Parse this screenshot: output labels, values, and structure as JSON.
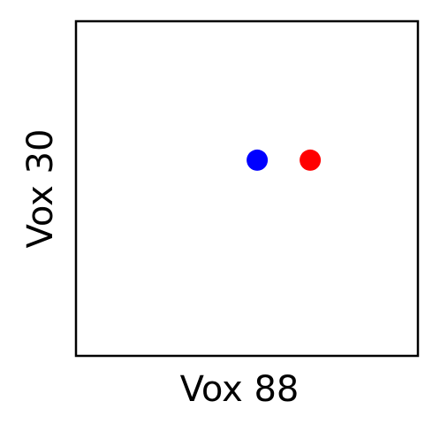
{
  "chart_data": {
    "type": "scatter",
    "title": "",
    "xlabel": "Vox 88",
    "ylabel": "Vox 30",
    "xlim": [
      0,
      1
    ],
    "ylim": [
      0,
      1
    ],
    "grid": false,
    "ticks": false,
    "points": [
      {
        "x": 0.53,
        "y": 0.585,
        "color": "#0000ff"
      },
      {
        "x": 0.685,
        "y": 0.585,
        "color": "#ff0000"
      }
    ]
  }
}
